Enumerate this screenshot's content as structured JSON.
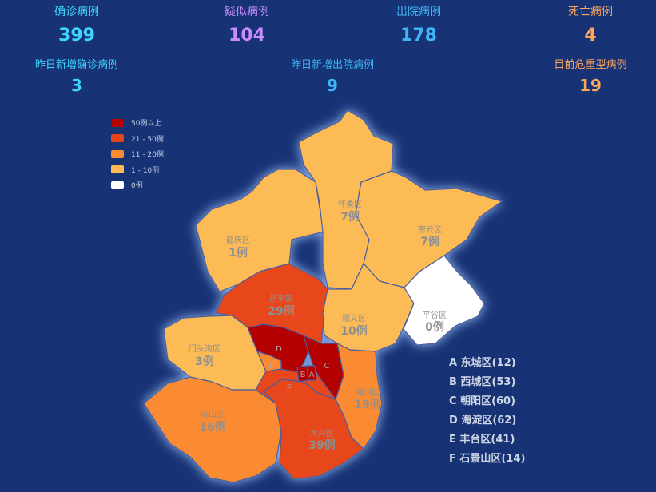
{
  "stats": [
    {
      "label": "确诊病例",
      "value": "399",
      "label_color": "#3ed6ff",
      "value_color": "#3ed6ff"
    },
    {
      "label": "疑似病例",
      "value": "104",
      "label_color": "#c98cff",
      "value_color": "#c98cff"
    },
    {
      "label": "出院病例",
      "value": "178",
      "label_color": "#3eb6f5",
      "value_color": "#3eb6f5"
    },
    {
      "label": "死亡病例",
      "value": "4",
      "label_color": "#ffa65a",
      "value_color": "#ffa65a"
    }
  ],
  "stats2": [
    {
      "label": "昨日新增确诊病例",
      "value": "3",
      "color": "#3ed6ff"
    },
    {
      "label": "昨日新增出院病例",
      "value": "9",
      "color": "#3eb6f5"
    },
    {
      "label": "目前危重型病例",
      "value": "19",
      "color": "#ffa65a"
    }
  ],
  "legend": [
    {
      "label": "50例以上",
      "color": "#b40000"
    },
    {
      "label": "21 - 50例",
      "color": "#e8461a"
    },
    {
      "label": "11 - 20例",
      "color": "#fb8b30"
    },
    {
      "label": "1 - 10例",
      "color": "#fdbb57"
    },
    {
      "label": "0例",
      "color": "#ffffff"
    }
  ],
  "regions": {
    "huairou": {
      "name": "怀柔区",
      "count": "7例"
    },
    "miyun": {
      "name": "密云区",
      "count": "7例"
    },
    "yanqing": {
      "name": "延庆区",
      "count": "1例"
    },
    "changping": {
      "name": "昌平区",
      "count": "29例"
    },
    "shunyi": {
      "name": "顺义区",
      "count": "10例"
    },
    "pinggu": {
      "name": "平谷区",
      "count": "0例"
    },
    "mentougou": {
      "name": "门头沟区",
      "count": "3例"
    },
    "fangshan": {
      "name": "房山区",
      "count": "16例"
    },
    "daxing": {
      "name": "大兴区",
      "count": "39例"
    },
    "tongzhou": {
      "name": "通州区",
      "count": "19例"
    }
  },
  "core_letters": {
    "A": "A",
    "B": "B",
    "C": "C",
    "D": "D",
    "E": "E",
    "F": "F"
  },
  "key_list": [
    "A 东城区(12)",
    "B 西城区(53)",
    "C 朝阳区(60)",
    "D 海淀区(62)",
    "E 丰台区(41)",
    "F 石景山区(14)"
  ]
}
